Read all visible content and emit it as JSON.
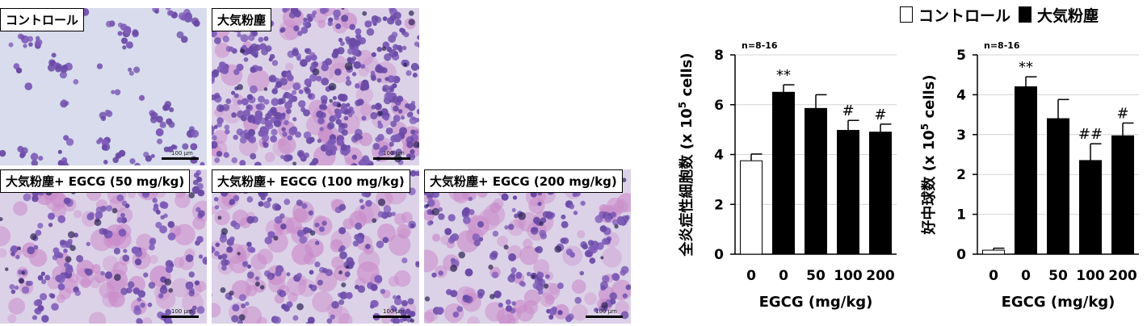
{
  "micrographs": [
    {
      "label": "コントロール",
      "scale_bar": "100 μm",
      "variant": "control"
    },
    {
      "label": "大気粉塵",
      "scale_bar": "100 μm",
      "variant": "dust"
    },
    {
      "label": "大気粉塵+ EGCG (50 mg/kg)",
      "scale_bar": "100 μm",
      "variant": "egcg"
    },
    {
      "label": "大気粉塵+ EGCG (100 mg/kg)",
      "scale_bar": "100 μm",
      "variant": "egcg"
    },
    {
      "label": "大気粉塵+ EGCG (200 mg/kg)",
      "scale_bar": "100 μm",
      "variant": "egcg"
    }
  ],
  "legend": {
    "control_label": "コントロール",
    "dust_label": "大気粉塵",
    "control_color": "#ffffff",
    "dust_color": "#000000"
  },
  "chart_data": [
    {
      "type": "bar",
      "categories": [
        "0",
        "0",
        "50",
        "100",
        "200"
      ],
      "values": [
        3.75,
        6.5,
        5.85,
        4.97,
        4.9
      ],
      "errors": [
        0.27,
        0.3,
        0.55,
        0.4,
        0.32
      ],
      "fills": [
        "#ffffff",
        "#000000",
        "#000000",
        "#000000",
        "#000000"
      ],
      "annotations": [
        "",
        "**",
        "",
        "#",
        "#"
      ],
      "n_label": "n=8-16",
      "xlabel": "EGCG (mg/kg)",
      "ylabel_prefix": "全炎症性細胞数 (x 10",
      "ylabel_exp": "5",
      "ylabel_suffix": " cells)",
      "ylim": [
        0,
        8
      ],
      "yticks": [
        0,
        2,
        4,
        6,
        8
      ]
    },
    {
      "type": "bar",
      "categories": [
        "0",
        "0",
        "50",
        "100",
        "200"
      ],
      "values": [
        0.1,
        4.2,
        3.4,
        2.35,
        2.97
      ],
      "errors": [
        0.05,
        0.25,
        0.48,
        0.42,
        0.32
      ],
      "fills": [
        "#ffffff",
        "#000000",
        "#000000",
        "#000000",
        "#000000"
      ],
      "annotations": [
        "",
        "**",
        "",
        "##",
        "#"
      ],
      "n_label": "n=8-16",
      "xlabel": "EGCG (mg/kg)",
      "ylabel_prefix": "好中球数 (x 10",
      "ylabel_exp": "5",
      "ylabel_suffix": " cells)",
      "ylim": [
        0,
        5
      ],
      "yticks": [
        0,
        1,
        2,
        3,
        4,
        5
      ]
    }
  ]
}
